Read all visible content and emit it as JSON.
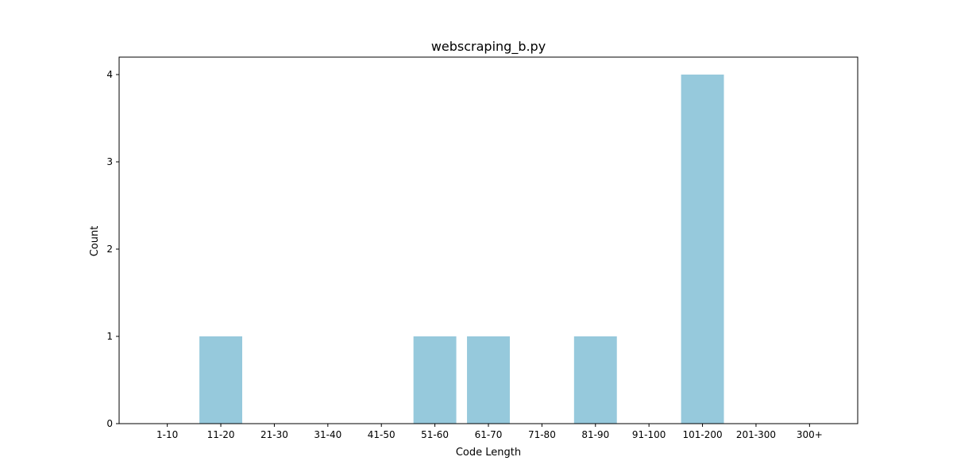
{
  "chart_data": {
    "type": "bar",
    "title": "webscraping_b.py",
    "xlabel": "Code Length",
    "ylabel": "Count",
    "categories": [
      "1-10",
      "11-20",
      "21-30",
      "31-40",
      "41-50",
      "51-60",
      "61-70",
      "71-80",
      "81-90",
      "91-100",
      "101-200",
      "201-300",
      "300+"
    ],
    "values": [
      0,
      1,
      0,
      0,
      0,
      1,
      1,
      0,
      1,
      0,
      4,
      0,
      0
    ],
    "yticks": [
      "0",
      "1",
      "2",
      "3",
      "4"
    ],
    "ylim": [
      0,
      4.2
    ],
    "grid": false,
    "bar_color": "#96c9dc"
  }
}
